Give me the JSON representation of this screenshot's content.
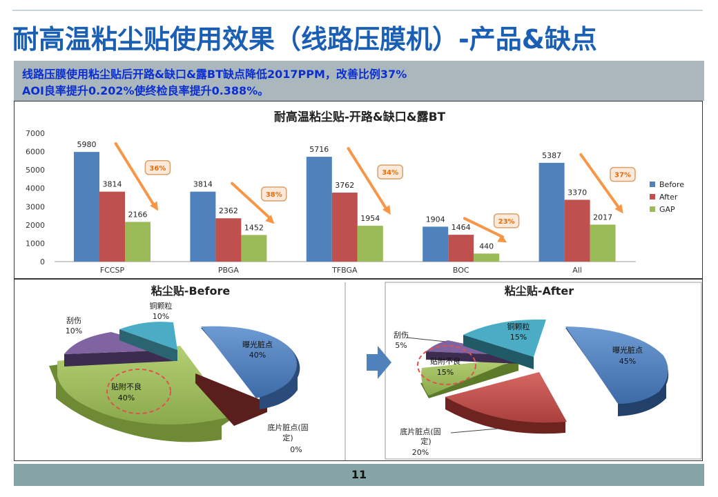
{
  "slide": {
    "title": "耐高温粘尘贴使用效果（线路压膜机）-产品&缺点",
    "summary_line1": "线路压膜使用粘尘贴后开路&缺口&露BT缺点降低2017PPM，改善比例37%",
    "summary_line2": "AOI良率提升0.202%使终检良率提升0.388%。",
    "page_number": "11"
  },
  "chart_data": [
    {
      "type": "bar",
      "title": "耐高温粘尘贴-开路&缺口&露BT",
      "categories": [
        "FCCSP",
        "PBGA",
        "TFBGA",
        "BOC",
        "All"
      ],
      "series": [
        {
          "name": "Before",
          "color": "#4f81bd",
          "values": [
            5980,
            3814,
            5716,
            1904,
            5387
          ]
        },
        {
          "name": "After",
          "color": "#c0504d",
          "values": [
            3814,
            2362,
            3762,
            1464,
            3370
          ]
        },
        {
          "name": "GAP",
          "color": "#9bbb59",
          "values": [
            2166,
            1452,
            1954,
            440,
            2017
          ]
        }
      ],
      "improvement_labels": [
        "36%",
        "38%",
        "34%",
        "23%",
        "37%"
      ],
      "yticks": [
        "0",
        "1000",
        "2000",
        "3000",
        "4000",
        "5000",
        "6000",
        "7000"
      ],
      "ylim": [
        0,
        7000
      ],
      "legend_position": "right",
      "grid": false
    },
    {
      "type": "pie",
      "title": "粘尘贴-Before",
      "slices": [
        {
          "label": "曝光脏点",
          "pct_label": "40%",
          "value": 40,
          "color": "#4f81bd"
        },
        {
          "label": "底片脏点(固定)",
          "pct_label": "0%",
          "value": 0,
          "color": "#c0504d"
        },
        {
          "label": "贴附不良",
          "pct_label": "40%",
          "value": 40,
          "color": "#9bbb59"
        },
        {
          "label": "刮伤",
          "pct_label": "10%",
          "value": 10,
          "color": "#8064a2"
        },
        {
          "label": "铜颗粒",
          "pct_label": "10%",
          "value": 10,
          "color": "#4bacc6"
        }
      ]
    },
    {
      "type": "pie",
      "title": "粘尘贴-After",
      "slices": [
        {
          "label": "曝光脏点",
          "pct_label": "45%",
          "value": 45,
          "color": "#4f81bd"
        },
        {
          "label": "底片脏点(固定)",
          "pct_label": "20%",
          "value": 20,
          "color": "#c0504d"
        },
        {
          "label": "贴附不良",
          "pct_label": "15%",
          "value": 15,
          "color": "#9bbb59"
        },
        {
          "label": "刮伤",
          "pct_label": "5%",
          "value": 5,
          "color": "#8064a2"
        },
        {
          "label": "铜颗粒",
          "pct_label": "15%",
          "value": 15,
          "color": "#4bacc6"
        }
      ]
    }
  ],
  "pie_text": {
    "before_title": "粘尘贴-Before",
    "after_title": "粘尘贴-After",
    "before": {
      "expose": "曝光脏点",
      "expose_pct": "40%",
      "film_line1": "底片脏点(固",
      "film_line2": "定)",
      "film_pct": "0%",
      "attach": "贴附不良",
      "attach_pct": "40%",
      "scratch": "刮伤",
      "scratch_pct": "10%",
      "copper": "铜颗粒",
      "copper_pct": "10%"
    },
    "after": {
      "expose": "曝光脏点",
      "expose_pct": "45%",
      "film_line1": "底片脏点(固",
      "film_line2": "定)",
      "film_pct": "20%",
      "attach": "贴附不良",
      "attach_pct": "15%",
      "scratch": "刮伤",
      "scratch_pct": "5%",
      "copper": "铜颗粒",
      "copper_pct": "15%"
    }
  },
  "colors": {
    "title_blue": "#1a5fb4",
    "summary_blue": "#0a2ed0",
    "band_gray": "#aab8be",
    "footer_teal": "#86a4a6",
    "arrow_orange": "#f79646",
    "callout_text": "#e36c09",
    "flow_arrow_blue": "#4f81bd"
  }
}
